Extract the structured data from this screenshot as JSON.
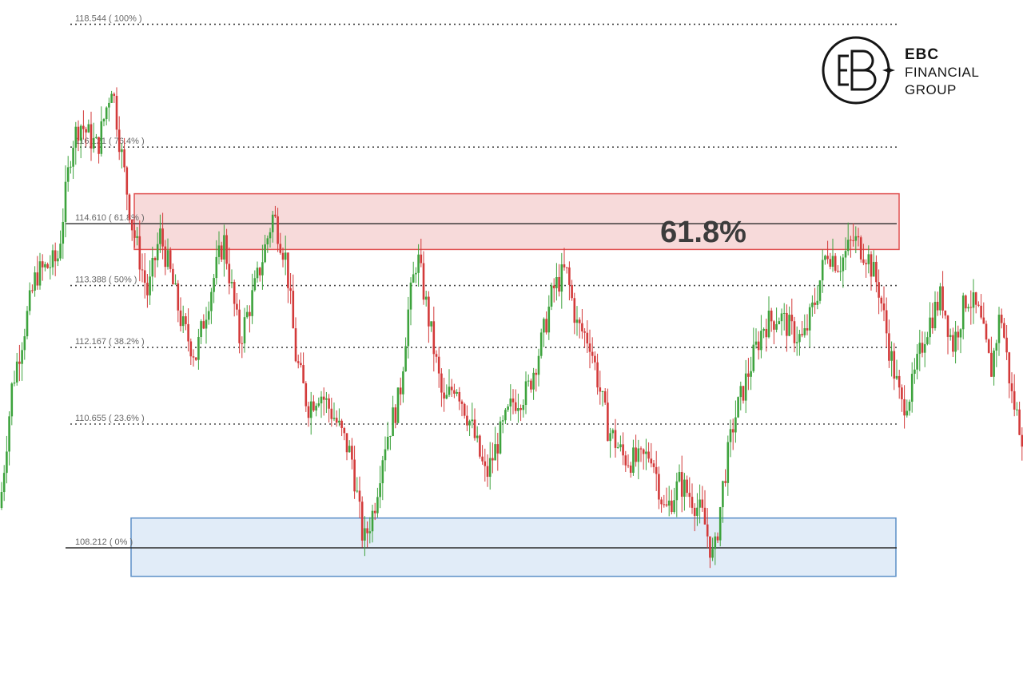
{
  "logo": {
    "line1": "EBC",
    "line2": "FINANCIAL",
    "line3": "GROUP"
  },
  "chart_data": {
    "type": "candlestick",
    "ylim": [
      107.5,
      118.0
    ],
    "fib_levels": [
      {
        "value": 118.544,
        "label": "118.544 ( 100% )"
      },
      {
        "value": 116.121,
        "label": "116.121 ( 76.4% )"
      },
      {
        "value": 114.61,
        "label": "114.610 ( 61.8% )"
      },
      {
        "value": 113.388,
        "label": "113.388 ( 50% )"
      },
      {
        "value": 112.167,
        "label": "112.167 ( 38.2% )"
      },
      {
        "value": 110.655,
        "label": "110.655 ( 23.6% )"
      },
      {
        "value": 108.212,
        "label": "108.212 ( 0% )"
      }
    ],
    "annotation": "61.8%",
    "zones": [
      {
        "name": "resistance",
        "from": 114.1,
        "to": 115.2,
        "color": "#f6d4d4",
        "border": "#e05050"
      },
      {
        "name": "support",
        "from": 107.65,
        "to": 108.8,
        "color": "#dce9f7",
        "border": "#5b8fc7"
      }
    ],
    "path": [
      [
        0,
        109.0
      ],
      [
        15,
        111.4
      ],
      [
        45,
        113.6
      ],
      [
        72,
        113.9
      ],
      [
        90,
        116.2
      ],
      [
        100,
        116.6
      ],
      [
        122,
        116.1
      ],
      [
        140,
        117.4
      ],
      [
        150,
        116.2
      ],
      [
        165,
        114.6
      ],
      [
        185,
        113.2
      ],
      [
        200,
        114.4
      ],
      [
        212,
        113.7
      ],
      [
        228,
        112.6
      ],
      [
        245,
        112.0
      ],
      [
        262,
        113.2
      ],
      [
        280,
        114.3
      ],
      [
        300,
        112.3
      ],
      [
        320,
        113.4
      ],
      [
        342,
        114.8
      ],
      [
        358,
        113.9
      ],
      [
        370,
        112.0
      ],
      [
        385,
        111.0
      ],
      [
        400,
        111.3
      ],
      [
        418,
        110.8
      ],
      [
        440,
        110.0
      ],
      [
        455,
        108.3
      ],
      [
        468,
        109.0
      ],
      [
        480,
        110.2
      ],
      [
        500,
        111.2
      ],
      [
        510,
        112.8
      ],
      [
        522,
        114.0
      ],
      [
        540,
        112.4
      ],
      [
        555,
        111.0
      ],
      [
        570,
        111.5
      ],
      [
        590,
        110.6
      ],
      [
        608,
        109.6
      ],
      [
        625,
        110.4
      ],
      [
        642,
        111.1
      ],
      [
        660,
        111.3
      ],
      [
        678,
        112.3
      ],
      [
        692,
        113.3
      ],
      [
        708,
        113.7
      ],
      [
        722,
        112.6
      ],
      [
        738,
        112.3
      ],
      [
        760,
        110.6
      ],
      [
        780,
        110.0
      ],
      [
        800,
        109.9
      ],
      [
        815,
        110.1
      ],
      [
        832,
        108.9
      ],
      [
        850,
        109.5
      ],
      [
        866,
        109.2
      ],
      [
        880,
        108.8
      ],
      [
        893,
        107.95
      ],
      [
        905,
        109.5
      ],
      [
        918,
        110.7
      ],
      [
        935,
        111.6
      ],
      [
        955,
        112.6
      ],
      [
        975,
        112.8
      ],
      [
        990,
        112.5
      ],
      [
        1005,
        112.3
      ],
      [
        1020,
        113.1
      ],
      [
        1035,
        114.1
      ],
      [
        1050,
        113.8
      ],
      [
        1068,
        114.3
      ],
      [
        1085,
        114.0
      ],
      [
        1100,
        113.3
      ],
      [
        1112,
        112.2
      ],
      [
        1128,
        111.0
      ],
      [
        1140,
        111.3
      ],
      [
        1158,
        112.5
      ],
      [
        1178,
        113.2
      ],
      [
        1192,
        112.2
      ],
      [
        1210,
        113.2
      ],
      [
        1225,
        112.8
      ],
      [
        1240,
        111.7
      ],
      [
        1252,
        112.9
      ],
      [
        1266,
        111.2
      ],
      [
        1280,
        110.4
      ]
    ]
  }
}
